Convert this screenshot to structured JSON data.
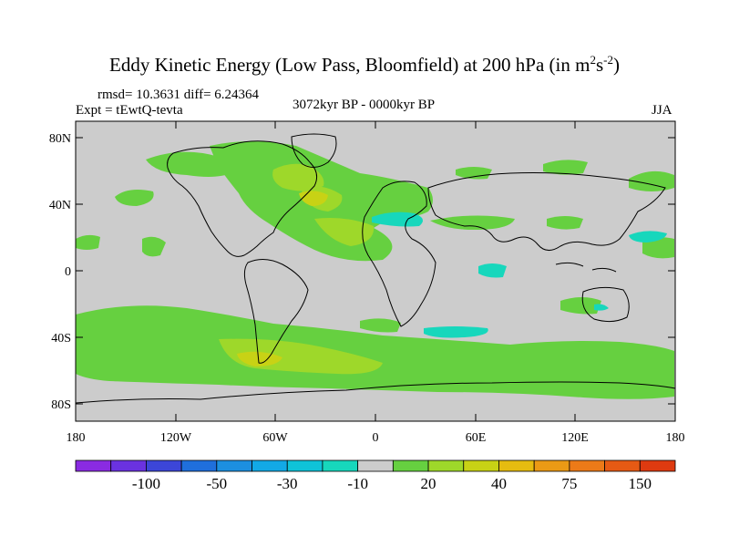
{
  "title": {
    "main": "Eddy Kinetic Energy (Low Pass, Bloomfield) at 200 hPa (in m",
    "sup1": "2",
    "mid": "s",
    "sup2": "-2",
    "close": ")"
  },
  "stats": "rmsd= 10.3631 diff= 6.24364",
  "experiment": "Expt = tEwtQ-tevta",
  "period": "3072kyr BP - 0000kyr BP",
  "season": "JJA",
  "lat_ticks": [
    "80N",
    "40N",
    "0",
    "40S",
    "80S"
  ],
  "lon_ticks": [
    "180",
    "120W",
    "60W",
    "0",
    "60E",
    "120E",
    "180"
  ],
  "colorbar": {
    "colors": [
      "#8a2be2",
      "#6a32e0",
      "#3c46d8",
      "#1f6fdc",
      "#1c8fe0",
      "#12a9e6",
      "#0fc3d8",
      "#17d7bc",
      "#cccccc",
      "#66d040",
      "#9ed82a",
      "#c8d215",
      "#e6bc10",
      "#eb9a15",
      "#ec7a18",
      "#e65a14",
      "#de3a10"
    ],
    "labels": [
      "-100",
      "-50",
      "-30",
      "-10",
      "20",
      "40",
      "75",
      "150"
    ]
  }
}
